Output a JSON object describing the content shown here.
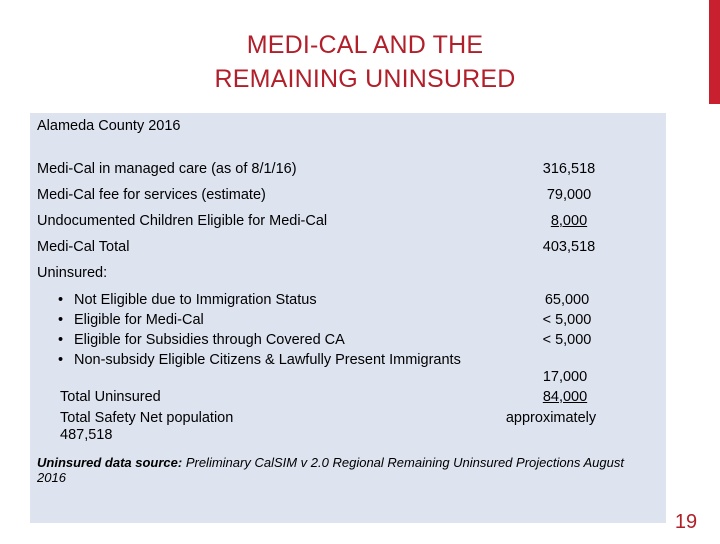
{
  "slide": {
    "title_line1": "MEDI-CAL AND THE",
    "title_line2": "REMAINING UNINSURED",
    "page_number": "19",
    "accent_color": "#c8202e"
  },
  "table": {
    "header": "Alameda County 2016",
    "rows": [
      {
        "label": "Medi-Cal in managed care (as of 8/1/16)",
        "value": "316,518"
      },
      {
        "label": "Medi-Cal fee for services (estimate)",
        "value": "79,000"
      },
      {
        "label": "Undocumented Children Eligible for Medi-Cal",
        "value": "8,000"
      },
      {
        "label": "Medi-Cal Total",
        "value": "403,518"
      }
    ],
    "uninsured_label": "Uninsured:",
    "uninsured_items": [
      {
        "label": "Not Eligible due to Immigration Status",
        "value": "65,000"
      },
      {
        "label": "Eligible for Medi-Cal",
        "value": "< 5,000"
      },
      {
        "label": "Eligible for Subsidies through Covered CA",
        "value": "< 5,000"
      },
      {
        "label": "Non-subsidy Eligible Citizens & Lawfully Present Immigrants",
        "value": ""
      }
    ],
    "extra_value": "17,000",
    "total_uninsured_label": "Total Uninsured",
    "total_uninsured_value": "84,000",
    "safety_net_label": "Total Safety Net population",
    "safety_net_value": "487,518",
    "approximately": "approximately"
  },
  "source": {
    "label": "Uninsured data source:",
    "text": "Preliminary CalSIM v 2.0 Regional Remaining Uninsured Projections August 2016"
  }
}
